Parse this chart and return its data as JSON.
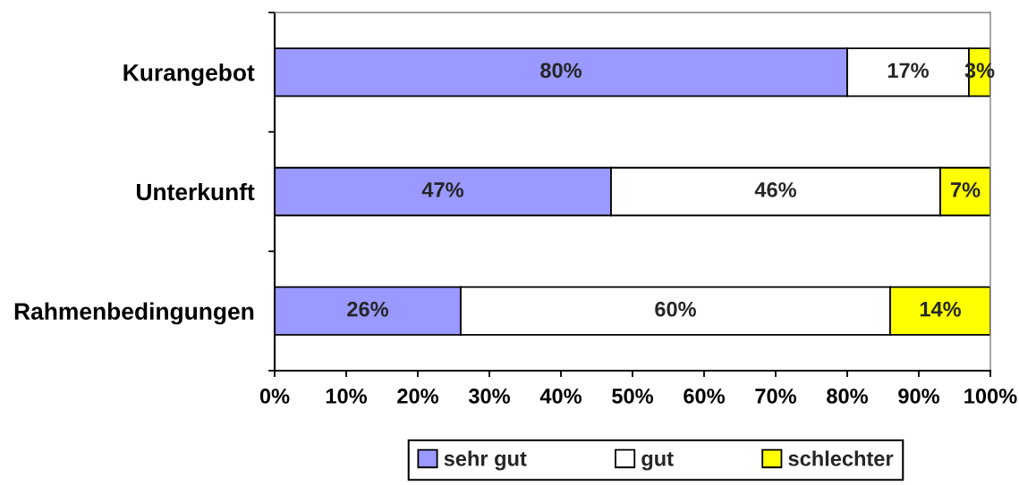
{
  "chart_data": {
    "type": "bar",
    "orientation": "horizontal",
    "stacked": true,
    "categories": [
      "Kurangebot",
      "Unterkunft",
      "Rahmenbedingungen"
    ],
    "series": [
      {
        "name": "sehr gut",
        "color": "#9999ff",
        "values": [
          80,
          47,
          26
        ],
        "value_labels": [
          "80%",
          "47%",
          "26%"
        ]
      },
      {
        "name": "gut",
        "color": "#ffffff",
        "values": [
          17,
          46,
          60
        ],
        "value_labels": [
          "17%",
          "46%",
          "60%"
        ]
      },
      {
        "name": "schlechter",
        "color": "#ffff00",
        "values": [
          3,
          7,
          14
        ],
        "value_labels": [
          "3%",
          "7%",
          "14%"
        ]
      }
    ],
    "xlim": [
      0,
      100
    ],
    "xticks": [
      {
        "value": 0,
        "label": "0%"
      },
      {
        "value": 10,
        "label": "10%"
      },
      {
        "value": 20,
        "label": "20%"
      },
      {
        "value": 30,
        "label": "30%"
      },
      {
        "value": 40,
        "label": "40%"
      },
      {
        "value": 50,
        "label": "50%"
      },
      {
        "value": 60,
        "label": "60%"
      },
      {
        "value": 70,
        "label": "70%"
      },
      {
        "value": 80,
        "label": "80%"
      },
      {
        "value": 90,
        "label": "90%"
      },
      {
        "value": 100,
        "label": "100%"
      }
    ],
    "legend": "bottom"
  }
}
